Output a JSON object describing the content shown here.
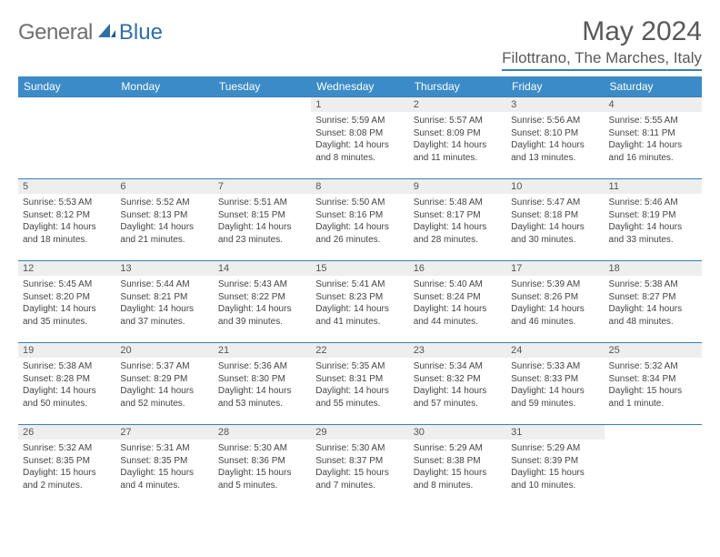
{
  "brand": {
    "part1": "General",
    "part2": "Blue"
  },
  "title": "May 2024",
  "location": "Filottrano, The Marches, Italy",
  "colors": {
    "header_bg": "#3b8bc8",
    "border": "#3b7fb6",
    "daynum_bg": "#eeeeee",
    "text": "#444444",
    "title": "#595959"
  },
  "typography": {
    "title_fontsize": 30,
    "location_fontsize": 17,
    "dayheader_fontsize": 12,
    "daynum_fontsize": 11,
    "body_fontsize": 10
  },
  "day_headers": [
    "Sunday",
    "Monday",
    "Tuesday",
    "Wednesday",
    "Thursday",
    "Friday",
    "Saturday"
  ],
  "weeks": [
    [
      null,
      null,
      null,
      {
        "n": "1",
        "sr": "5:59 AM",
        "ss": "8:08 PM",
        "dl": "14 hours and 8 minutes."
      },
      {
        "n": "2",
        "sr": "5:57 AM",
        "ss": "8:09 PM",
        "dl": "14 hours and 11 minutes."
      },
      {
        "n": "3",
        "sr": "5:56 AM",
        "ss": "8:10 PM",
        "dl": "14 hours and 13 minutes."
      },
      {
        "n": "4",
        "sr": "5:55 AM",
        "ss": "8:11 PM",
        "dl": "14 hours and 16 minutes."
      }
    ],
    [
      {
        "n": "5",
        "sr": "5:53 AM",
        "ss": "8:12 PM",
        "dl": "14 hours and 18 minutes."
      },
      {
        "n": "6",
        "sr": "5:52 AM",
        "ss": "8:13 PM",
        "dl": "14 hours and 21 minutes."
      },
      {
        "n": "7",
        "sr": "5:51 AM",
        "ss": "8:15 PM",
        "dl": "14 hours and 23 minutes."
      },
      {
        "n": "8",
        "sr": "5:50 AM",
        "ss": "8:16 PM",
        "dl": "14 hours and 26 minutes."
      },
      {
        "n": "9",
        "sr": "5:48 AM",
        "ss": "8:17 PM",
        "dl": "14 hours and 28 minutes."
      },
      {
        "n": "10",
        "sr": "5:47 AM",
        "ss": "8:18 PM",
        "dl": "14 hours and 30 minutes."
      },
      {
        "n": "11",
        "sr": "5:46 AM",
        "ss": "8:19 PM",
        "dl": "14 hours and 33 minutes."
      }
    ],
    [
      {
        "n": "12",
        "sr": "5:45 AM",
        "ss": "8:20 PM",
        "dl": "14 hours and 35 minutes."
      },
      {
        "n": "13",
        "sr": "5:44 AM",
        "ss": "8:21 PM",
        "dl": "14 hours and 37 minutes."
      },
      {
        "n": "14",
        "sr": "5:43 AM",
        "ss": "8:22 PM",
        "dl": "14 hours and 39 minutes."
      },
      {
        "n": "15",
        "sr": "5:41 AM",
        "ss": "8:23 PM",
        "dl": "14 hours and 41 minutes."
      },
      {
        "n": "16",
        "sr": "5:40 AM",
        "ss": "8:24 PM",
        "dl": "14 hours and 44 minutes."
      },
      {
        "n": "17",
        "sr": "5:39 AM",
        "ss": "8:26 PM",
        "dl": "14 hours and 46 minutes."
      },
      {
        "n": "18",
        "sr": "5:38 AM",
        "ss": "8:27 PM",
        "dl": "14 hours and 48 minutes."
      }
    ],
    [
      {
        "n": "19",
        "sr": "5:38 AM",
        "ss": "8:28 PM",
        "dl": "14 hours and 50 minutes."
      },
      {
        "n": "20",
        "sr": "5:37 AM",
        "ss": "8:29 PM",
        "dl": "14 hours and 52 minutes."
      },
      {
        "n": "21",
        "sr": "5:36 AM",
        "ss": "8:30 PM",
        "dl": "14 hours and 53 minutes."
      },
      {
        "n": "22",
        "sr": "5:35 AM",
        "ss": "8:31 PM",
        "dl": "14 hours and 55 minutes."
      },
      {
        "n": "23",
        "sr": "5:34 AM",
        "ss": "8:32 PM",
        "dl": "14 hours and 57 minutes."
      },
      {
        "n": "24",
        "sr": "5:33 AM",
        "ss": "8:33 PM",
        "dl": "14 hours and 59 minutes."
      },
      {
        "n": "25",
        "sr": "5:32 AM",
        "ss": "8:34 PM",
        "dl": "15 hours and 1 minute."
      }
    ],
    [
      {
        "n": "26",
        "sr": "5:32 AM",
        "ss": "8:35 PM",
        "dl": "15 hours and 2 minutes."
      },
      {
        "n": "27",
        "sr": "5:31 AM",
        "ss": "8:35 PM",
        "dl": "15 hours and 4 minutes."
      },
      {
        "n": "28",
        "sr": "5:30 AM",
        "ss": "8:36 PM",
        "dl": "15 hours and 5 minutes."
      },
      {
        "n": "29",
        "sr": "5:30 AM",
        "ss": "8:37 PM",
        "dl": "15 hours and 7 minutes."
      },
      {
        "n": "30",
        "sr": "5:29 AM",
        "ss": "8:38 PM",
        "dl": "15 hours and 8 minutes."
      },
      {
        "n": "31",
        "sr": "5:29 AM",
        "ss": "8:39 PM",
        "dl": "15 hours and 10 minutes."
      },
      null
    ]
  ],
  "labels": {
    "sunrise": "Sunrise: ",
    "sunset": "Sunset: ",
    "daylight": "Daylight: "
  }
}
